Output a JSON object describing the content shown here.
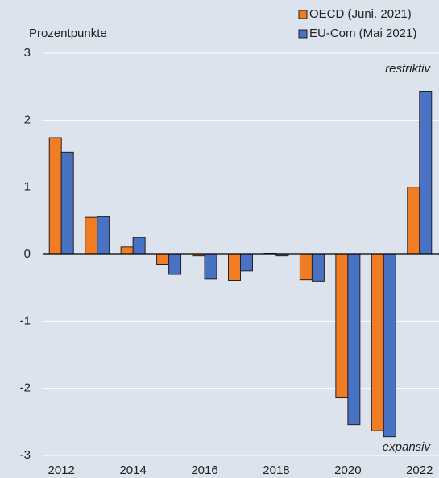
{
  "chart_data": {
    "type": "bar",
    "y_label": "Prozentpunkte",
    "categories": [
      "2012",
      null,
      "2014",
      null,
      "2016",
      null,
      "2018",
      null,
      "2020",
      null,
      "2022"
    ],
    "series": [
      {
        "name": "OECD (Juni. 2021)",
        "color": "#f07d23",
        "values": [
          1.74,
          0.55,
          0.11,
          -0.15,
          -0.02,
          -0.39,
          0.01,
          -0.38,
          -2.13,
          -2.63,
          1.0
        ]
      },
      {
        "name": "EU-Com (Mai 2021)",
        "color": "#4a72c4",
        "values": [
          1.52,
          0.56,
          0.25,
          -0.3,
          -0.37,
          -0.25,
          -0.02,
          -0.4,
          -2.54,
          -2.72,
          2.43
        ]
      }
    ],
    "ylim": [
      -3,
      3
    ],
    "yticks": [
      -3,
      -2,
      -1,
      0,
      1,
      2,
      3
    ],
    "grid": true,
    "annotations": [
      "restriktiv",
      "expansiv"
    ],
    "legend": "top-right"
  }
}
